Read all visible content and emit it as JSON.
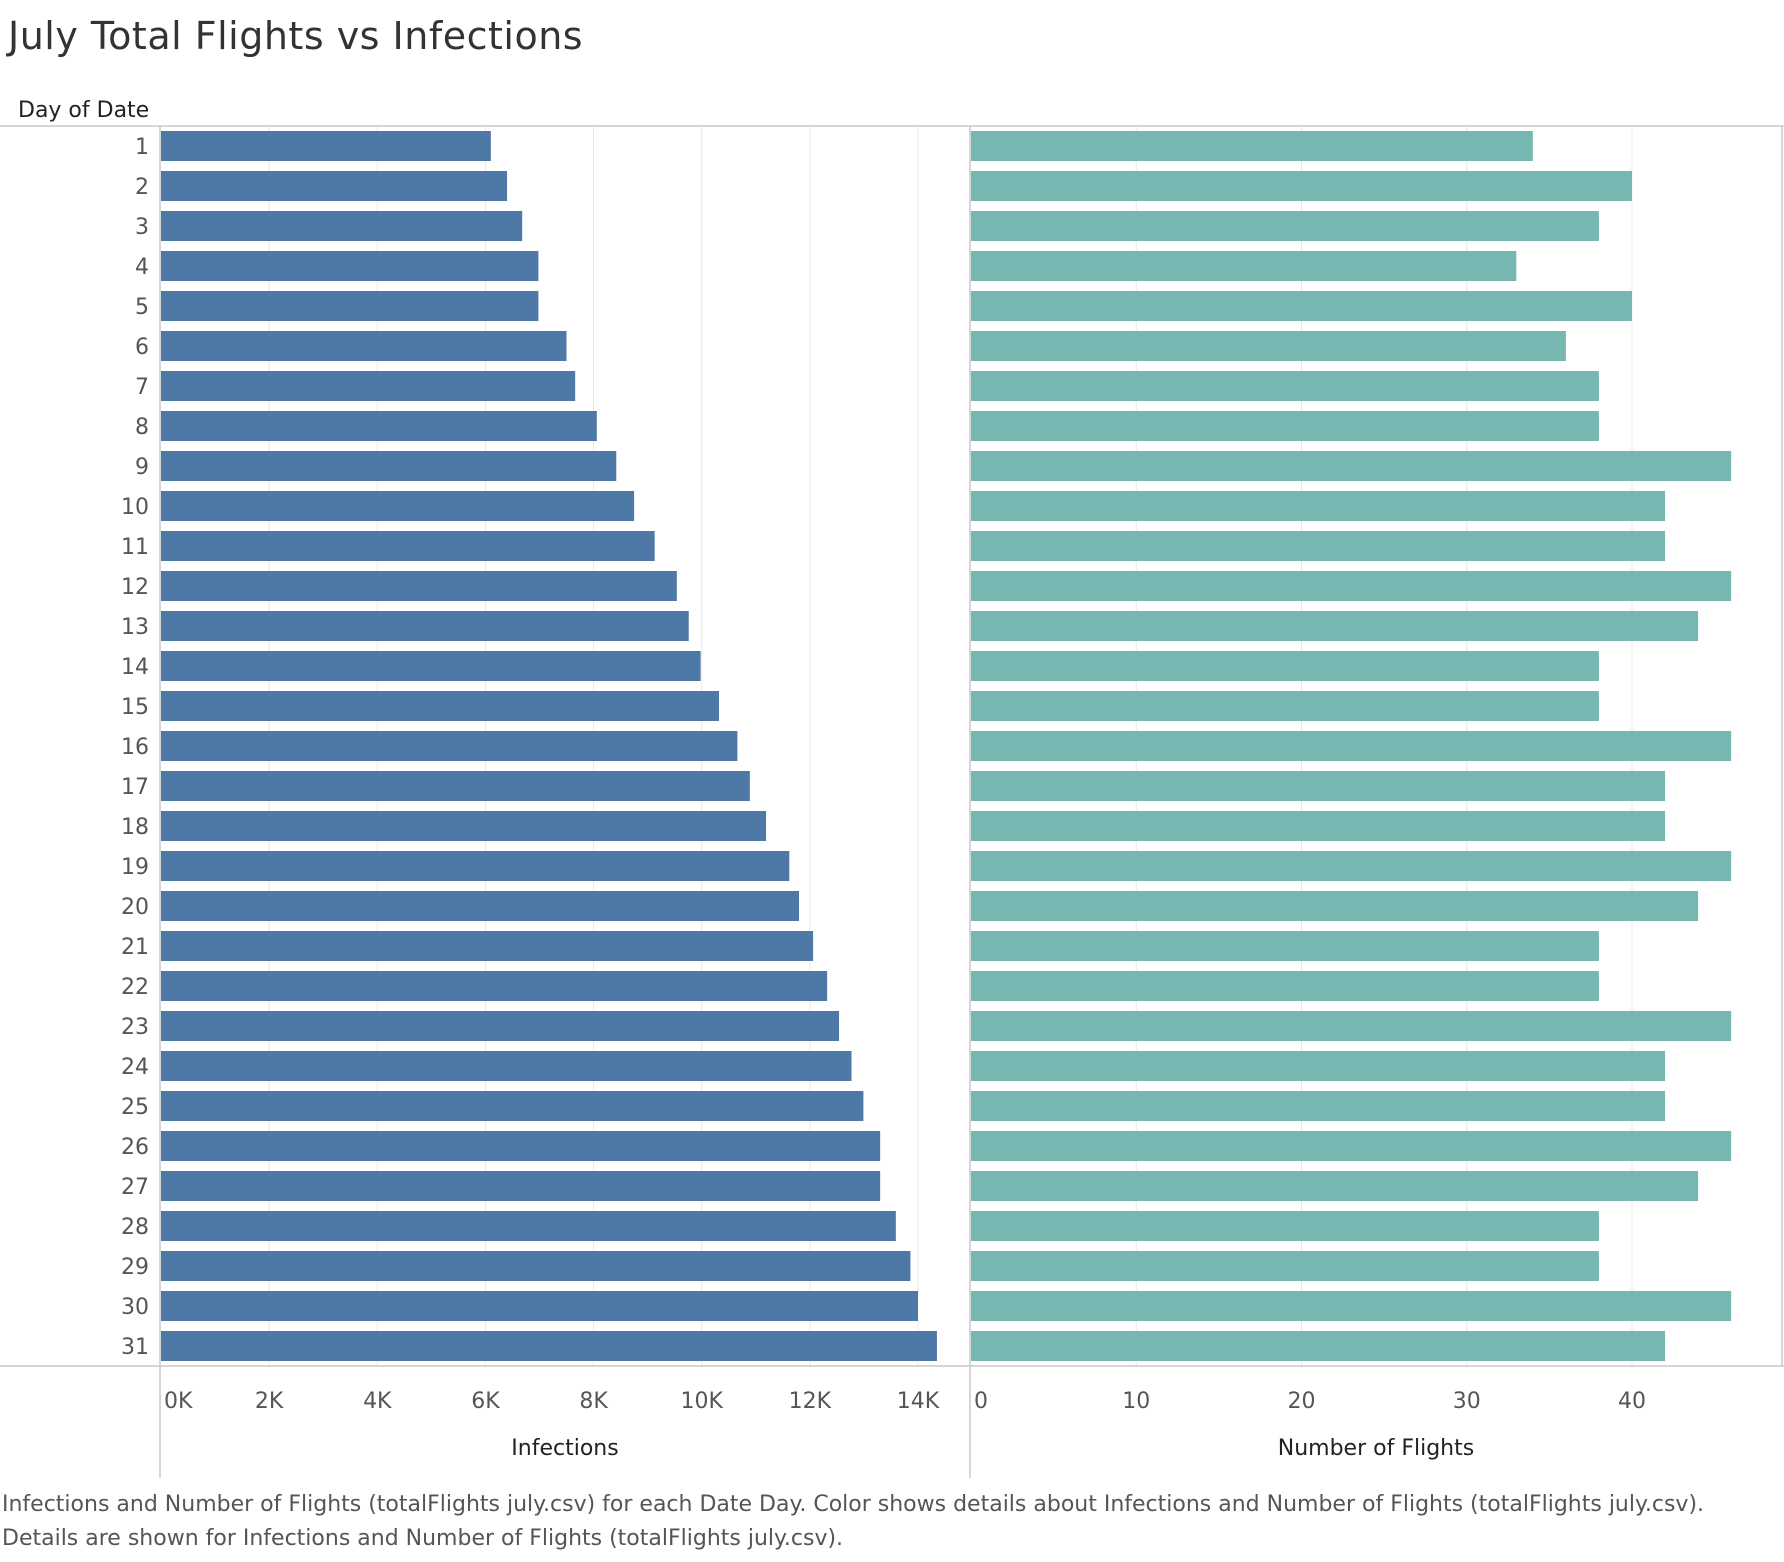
{
  "title": "July Total Flights vs Infections",
  "caption": {
    "line1": "Infections and Number of Flights (totalFlights july.csv) for each Date Day.  Color shows details about Infections and Number of Flights (totalFlights july.csv).",
    "line2": "Details are shown for Infections and Number of Flights (totalFlights july.csv)."
  },
  "colors": {
    "infections": "#4e79a7",
    "flights": "#76b7b2",
    "grid": "#e8e8e8",
    "border": "#c8c8c8"
  },
  "chart_data": {
    "type": "bar",
    "orientation": "horizontal",
    "row_header": "Day of Date",
    "categories": [
      "1",
      "2",
      "3",
      "4",
      "5",
      "6",
      "7",
      "8",
      "9",
      "10",
      "11",
      "12",
      "13",
      "14",
      "15",
      "16",
      "17",
      "18",
      "19",
      "20",
      "21",
      "22",
      "23",
      "24",
      "25",
      "26",
      "27",
      "28",
      "29",
      "30",
      "31"
    ],
    "series": [
      {
        "name": "Infections",
        "axis_title": "Infections",
        "xlim": [
          0,
          14600
        ],
        "ticks": [
          0,
          2000,
          4000,
          6000,
          8000,
          10000,
          12000,
          14000
        ],
        "tick_labels": [
          "0K",
          "2K",
          "4K",
          "6K",
          "8K",
          "10K",
          "12K",
          "14K"
        ],
        "values": [
          6100,
          6400,
          6680,
          6980,
          6980,
          7500,
          7660,
          8060,
          8420,
          8750,
          9130,
          9540,
          9760,
          9980,
          10320,
          10660,
          10890,
          11190,
          11620,
          11800,
          12060,
          12320,
          12540,
          12770,
          12990,
          13300,
          13300,
          13590,
          13860,
          14000,
          14350
        ]
      },
      {
        "name": "Number of Flights",
        "axis_title": "Number of Flights",
        "xlim": [
          0,
          48
        ],
        "ticks": [
          0,
          10,
          20,
          30,
          40
        ],
        "tick_labels": [
          "0",
          "10",
          "20",
          "30",
          "40"
        ],
        "values": [
          34,
          40,
          38,
          33,
          40,
          36,
          38,
          38,
          46,
          42,
          42,
          46,
          44,
          38,
          38,
          46,
          42,
          42,
          46,
          44,
          38,
          38,
          46,
          42,
          42,
          46,
          44,
          38,
          38,
          46,
          42
        ]
      }
    ]
  }
}
